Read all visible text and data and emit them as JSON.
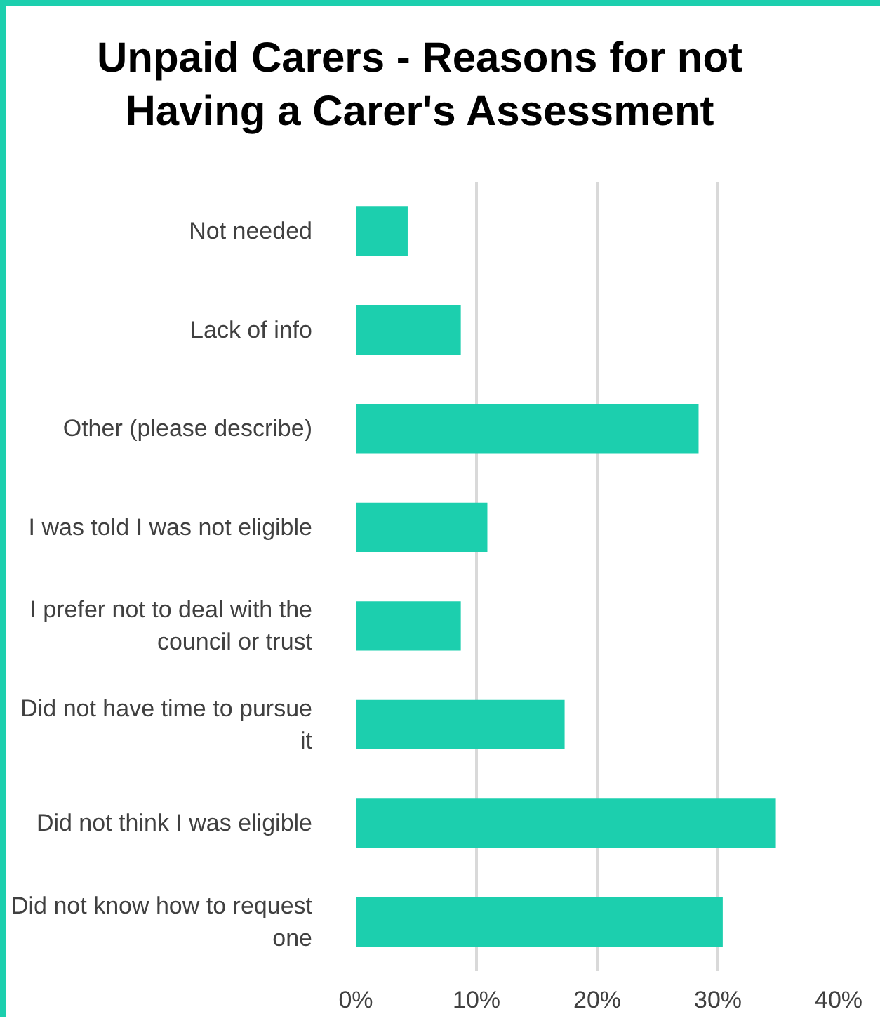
{
  "chart_data": {
    "type": "bar",
    "orientation": "horizontal",
    "title": "Unpaid Carers - Reasons for not Having a Carer's Assessment",
    "categories": [
      "Not needed",
      "Lack of info",
      "Other (please describe)",
      "I was told I was not eligible",
      "I prefer not to deal with the council or trust",
      "Did not have time to pursue it",
      "Did not think I was eligible",
      "Did not know how to request one"
    ],
    "values": [
      4.3,
      8.7,
      28.4,
      10.9,
      8.7,
      17.3,
      34.8,
      30.4
    ],
    "color": "#1ccfae",
    "xlim": [
      0,
      40
    ],
    "xticks": [
      {
        "value": 0,
        "label": "0%"
      },
      {
        "value": 10,
        "label": "10%"
      },
      {
        "value": 20,
        "label": "20%"
      },
      {
        "value": 30,
        "label": "30%"
      },
      {
        "value": 40,
        "label": "40%"
      }
    ],
    "grid": "x"
  }
}
